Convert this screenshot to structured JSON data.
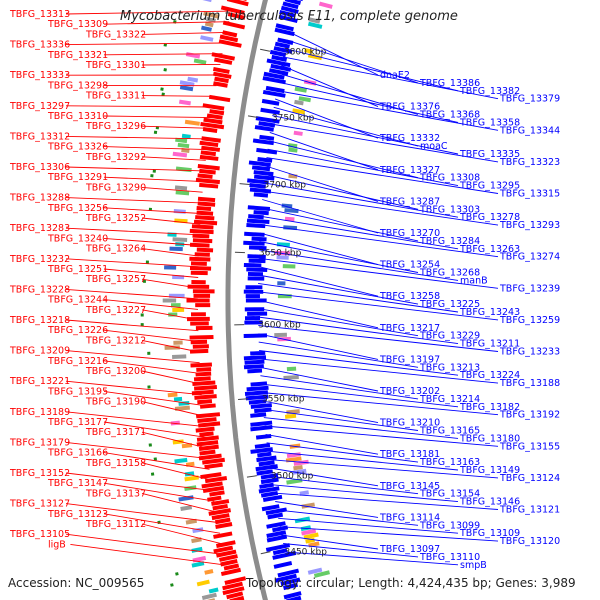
{
  "title": "Mycobacterium tuberculosis F11, complete genome",
  "accession_text": "Accession: NC_009565",
  "topology_text": "Topology: circular; Length: 4,424,435 bp; Genes: 3,989",
  "colors": {
    "forward": "#ff0000",
    "reverse": "#0000ff",
    "backbone": "#8c8c8c",
    "gc_marker": "#1a8a1a"
  },
  "scale_ticks": [
    {
      "label": "3800 kbp"
    },
    {
      "label": "3750 kbp"
    },
    {
      "label": "3700 kbp"
    },
    {
      "label": "3650 kbp"
    },
    {
      "label": "3600 kbp"
    },
    {
      "label": "3550 kbp"
    },
    {
      "label": "3500 kbp"
    },
    {
      "label": "3450 kbp"
    }
  ],
  "left_labels": [
    "TBFG_13313",
    "TBFG_13309",
    "TBFG_13322",
    "TBFG_13336",
    "TBFG_13321",
    "TBFG_13301",
    "TBFG_13333",
    "TBFG_13298",
    "TBFG_13311",
    "TBFG_13297",
    "TBFG_13310",
    "TBFG_13296",
    "TBFG_13312",
    "TBFG_13326",
    "TBFG_13292",
    "TBFG_13306",
    "TBFG_13291",
    "TBFG_13290",
    "TBFG_13288",
    "TBFG_13256",
    "TBFG_13252",
    "TBFG_13283",
    "TBFG_13240",
    "TBFG_13264",
    "TBFG_13232",
    "TBFG_13251",
    "TBFG_13257",
    "TBFG_13228",
    "TBFG_13244",
    "TBFG_13227",
    "TBFG_13218",
    "TBFG_13226",
    "TBFG_13212",
    "TBFG_13209",
    "TBFG_13216",
    "TBFG_13200",
    "TBFG_13221",
    "TBFG_13195",
    "TBFG_13190",
    "TBFG_13189",
    "TBFG_13177",
    "TBFG_13171",
    "TBFG_13179",
    "TBFG_13166",
    "TBFG_13158",
    "TBFG_13152",
    "TBFG_13147",
    "TBFG_13137",
    "TBFG_13127",
    "TBFG_13123",
    "TBFG_13112",
    "TBFG_13105",
    "ligB"
  ],
  "right_labels": [
    "dnaE2",
    "TBFG_13386",
    "TBFG_13382",
    "TBFG_13379",
    "TBFG_13376",
    "TBFG_13368",
    "TBFG_13358",
    "TBFG_13344",
    "TBFG_13332",
    "moaC",
    "TBFG_13335",
    "TBFG_13323",
    "TBFG_13327",
    "TBFG_13308",
    "TBFG_13295",
    "TBFG_13315",
    "TBFG_13287",
    "TBFG_13303",
    "TBFG_13278",
    "TBFG_13293",
    "TBFG_13270",
    "TBFG_13284",
    "TBFG_13263",
    "TBFG_13274",
    "TBFG_13254",
    "TBFG_13268",
    "manB",
    "TBFG_13239",
    "TBFG_13258",
    "TBFG_13225",
    "TBFG_13243",
    "TBFG_13259",
    "TBFG_13217",
    "TBFG_13229",
    "TBFG_13211",
    "TBFG_13233",
    "TBFG_13197",
    "TBFG_13213",
    "TBFG_13224",
    "TBFG_13188",
    "TBFG_13202",
    "TBFG_13214",
    "TBFG_13182",
    "TBFG_13192",
    "TBFG_13210",
    "TBFG_13165",
    "TBFG_13180",
    "TBFG_13155",
    "TBFG_13181",
    "TBFG_13163",
    "TBFG_13149",
    "TBFG_13124",
    "TBFG_13145",
    "TBFG_13154",
    "TBFG_13146",
    "TBFG_13121",
    "TBFG_13114",
    "TBFG_13099",
    "TBFG_13109",
    "TBFG_13120",
    "TBFG_13097",
    "TBFG_13110",
    "smpB"
  ]
}
